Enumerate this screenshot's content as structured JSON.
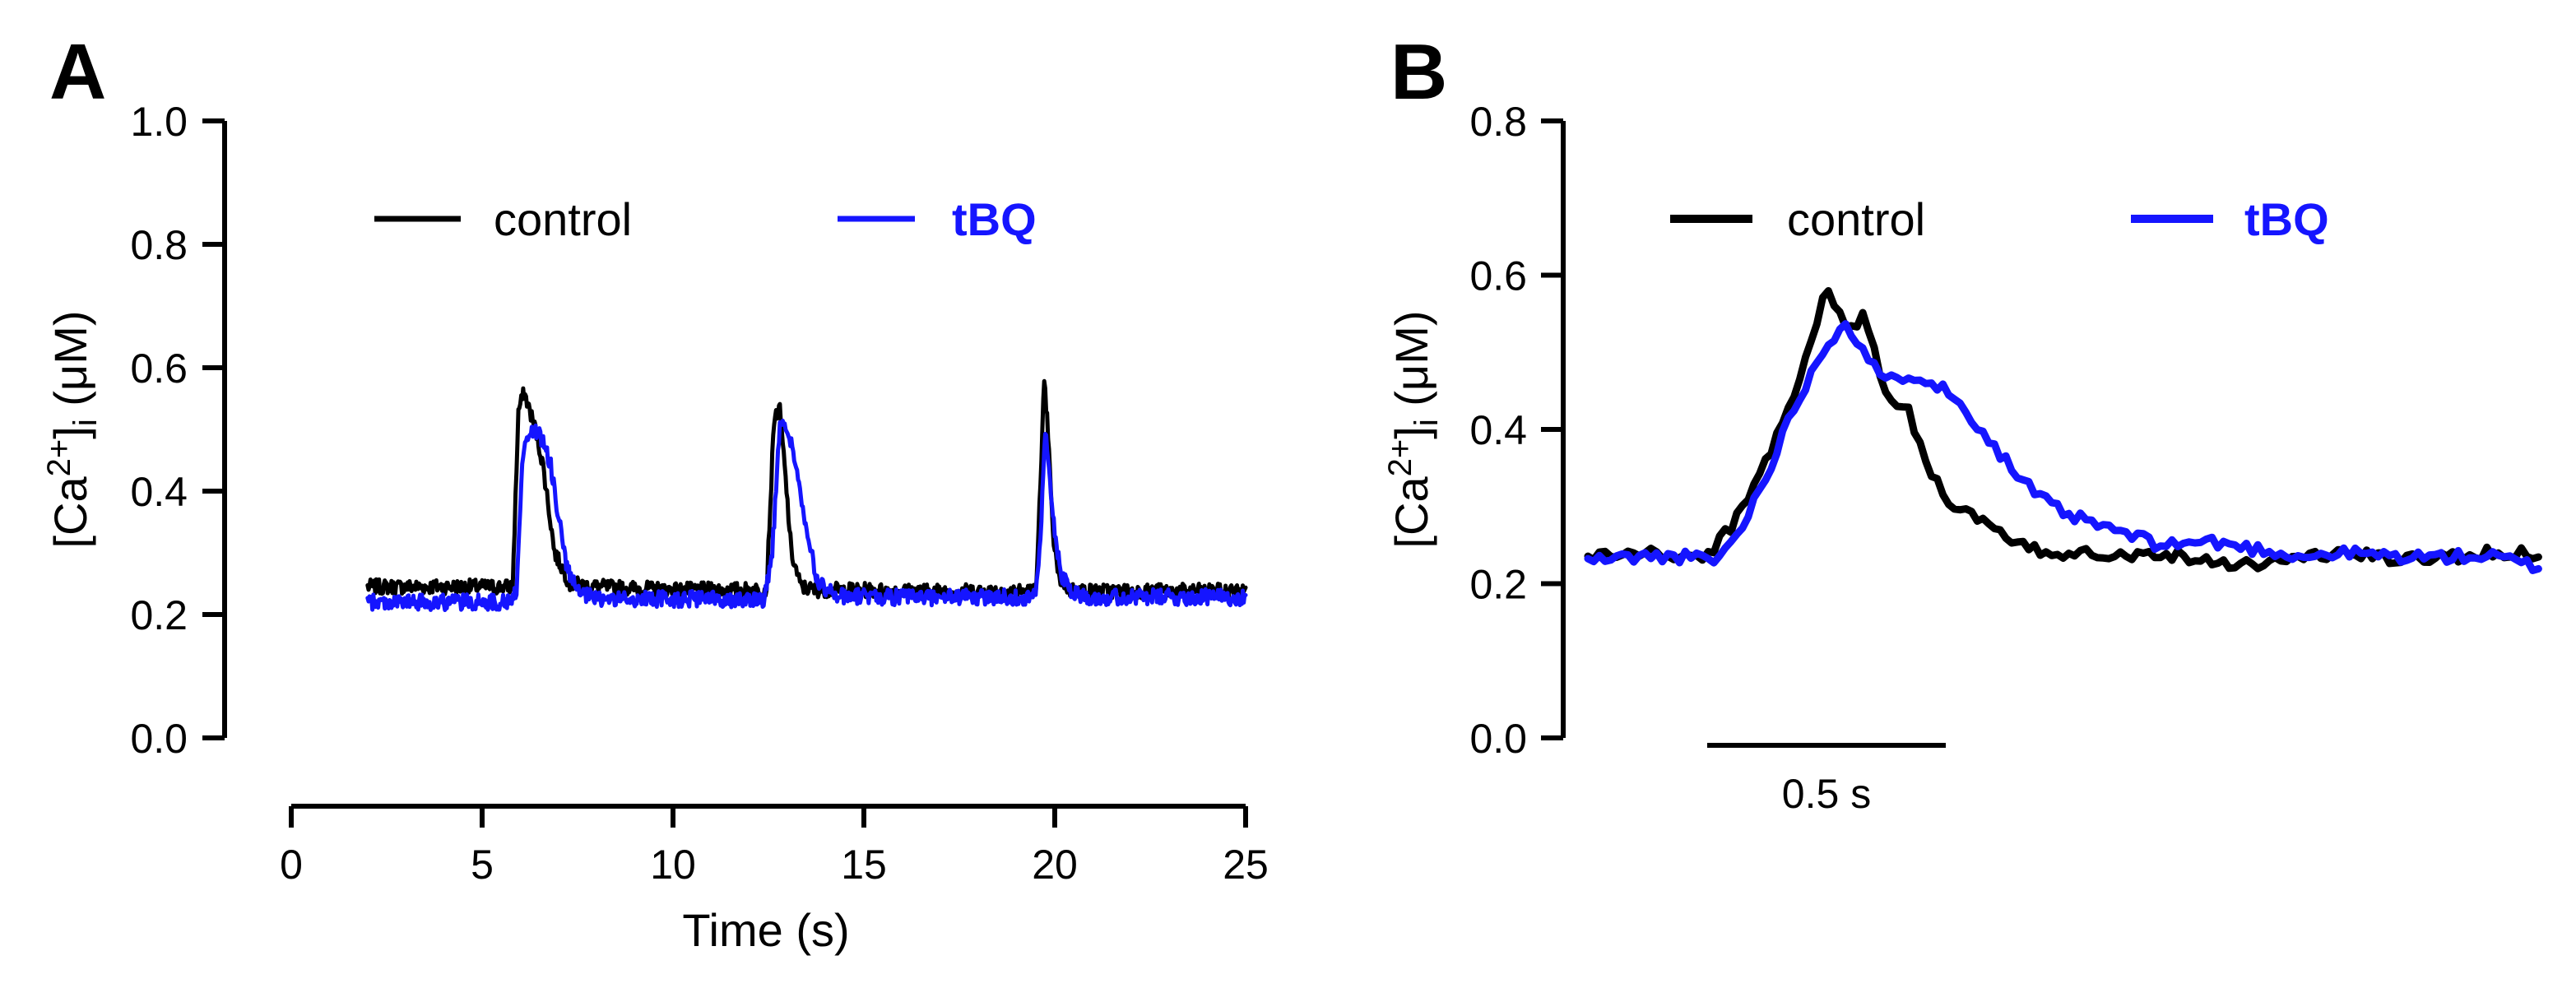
{
  "chart_data": [
    {
      "panel": "A",
      "type": "line",
      "title": "",
      "xlabel": "Time (s)",
      "ylabel_parts": {
        "base": "[Ca",
        "sup": "2+",
        "close": "]",
        "sub": "i",
        "units": " (μM)"
      },
      "xlim": [
        0,
        25
      ],
      "ylim": [
        0.0,
        1.0
      ],
      "xticks": [
        0,
        5,
        10,
        15,
        20,
        25
      ],
      "xtick_labels": [
        "0",
        "5",
        "10",
        "15",
        "20",
        "25"
      ],
      "yticks": [
        0.0,
        0.2,
        0.4,
        0.6,
        0.8,
        1.0
      ],
      "ytick_labels": [
        "0.0",
        "0.2",
        "0.4",
        "0.6",
        "0.8",
        "1.0"
      ],
      "legend": {
        "placement": "top",
        "entries": [
          "control",
          "tBQ"
        ]
      },
      "series": [
        {
          "name": "control",
          "color": "#000000",
          "bold_label": false,
          "x": [
            2.0,
            5.5,
            5.8,
            5.95,
            6.1,
            6.25,
            6.4,
            6.6,
            6.9,
            7.3,
            8.0,
            10.0,
            12.0,
            12.45,
            12.65,
            12.8,
            12.95,
            13.1,
            13.35,
            13.7,
            14.5,
            16.0,
            18.0,
            19.5,
            19.65,
            19.72,
            19.82,
            19.95,
            20.1,
            20.4,
            20.9,
            22.0,
            25.0
          ],
          "y": [
            0.245,
            0.245,
            0.245,
            0.53,
            0.56,
            0.53,
            0.5,
            0.44,
            0.3,
            0.25,
            0.245,
            0.24,
            0.24,
            0.24,
            0.52,
            0.53,
            0.42,
            0.3,
            0.245,
            0.24,
            0.24,
            0.238,
            0.238,
            0.238,
            0.44,
            0.58,
            0.5,
            0.33,
            0.26,
            0.24,
            0.238,
            0.238,
            0.238
          ]
        },
        {
          "name": "tBQ",
          "color": "#1515ff",
          "bold_label": true,
          "x": [
            2.0,
            5.7,
            5.9,
            6.05,
            6.2,
            6.4,
            6.6,
            6.8,
            7.0,
            7.2,
            7.5,
            8.0,
            10.0,
            12.4,
            12.6,
            12.8,
            13.0,
            13.2,
            13.5,
            13.8,
            14.3,
            16.0,
            19.5,
            19.65,
            19.75,
            19.85,
            20.0,
            20.2,
            20.5,
            21.0,
            22.5,
            25.0
          ],
          "y": [
            0.22,
            0.22,
            0.24,
            0.45,
            0.49,
            0.5,
            0.48,
            0.44,
            0.36,
            0.28,
            0.235,
            0.225,
            0.225,
            0.225,
            0.3,
            0.51,
            0.5,
            0.45,
            0.33,
            0.25,
            0.23,
            0.228,
            0.228,
            0.35,
            0.5,
            0.43,
            0.33,
            0.26,
            0.235,
            0.228,
            0.228,
            0.228
          ]
        }
      ]
    },
    {
      "panel": "B",
      "type": "line",
      "title": "",
      "xlabel": "",
      "ylabel_parts": {
        "base": "[Ca",
        "sup": "2+",
        "close": "]",
        "sub": "i",
        "units": " (μM)"
      },
      "xlim": [
        0.0,
        2.0
      ],
      "ylim": [
        0.0,
        0.8
      ],
      "yticks": [
        0.0,
        0.2,
        0.4,
        0.6,
        0.8
      ],
      "ytick_labels": [
        "0.0",
        "0.2",
        "0.4",
        "0.6",
        "0.8"
      ],
      "scale_bar": {
        "label": "0.5 s",
        "start": 0.25,
        "length": 0.5
      },
      "legend": {
        "placement": "top",
        "entries": [
          "control",
          "tBQ"
        ]
      },
      "series": [
        {
          "name": "control",
          "color": "#000000",
          "bold_label": false,
          "x": [
            0.0,
            0.1,
            0.2,
            0.25,
            0.32,
            0.38,
            0.44,
            0.5,
            0.52,
            0.55,
            0.58,
            0.6,
            0.63,
            0.67,
            0.7,
            0.75,
            0.8,
            0.85,
            0.9,
            0.95,
            1.0,
            1.05,
            1.1,
            1.2,
            1.3,
            1.4,
            1.5,
            1.6,
            1.7,
            1.8,
            1.9,
            2.0
          ],
          "y": [
            0.235,
            0.24,
            0.235,
            0.235,
            0.29,
            0.37,
            0.46,
            0.58,
            0.56,
            0.53,
            0.55,
            0.5,
            0.44,
            0.43,
            0.37,
            0.31,
            0.29,
            0.27,
            0.25,
            0.24,
            0.24,
            0.245,
            0.235,
            0.24,
            0.23,
            0.225,
            0.235,
            0.24,
            0.23,
            0.235,
            0.24,
            0.24
          ]
        },
        {
          "name": "tBQ",
          "color": "#1515ff",
          "bold_label": true,
          "x": [
            0.0,
            0.1,
            0.2,
            0.27,
            0.32,
            0.38,
            0.44,
            0.5,
            0.54,
            0.58,
            0.62,
            0.66,
            0.7,
            0.75,
            0.8,
            0.85,
            0.9,
            0.95,
            1.0,
            1.05,
            1.1,
            1.2,
            1.3,
            1.4,
            1.5,
            1.6,
            1.7,
            1.8,
            1.9,
            2.0
          ],
          "y": [
            0.23,
            0.235,
            0.235,
            0.23,
            0.27,
            0.35,
            0.44,
            0.51,
            0.54,
            0.5,
            0.46,
            0.47,
            0.47,
            0.45,
            0.42,
            0.38,
            0.34,
            0.31,
            0.29,
            0.28,
            0.27,
            0.25,
            0.255,
            0.245,
            0.235,
            0.24,
            0.235,
            0.235,
            0.235,
            0.22
          ]
        }
      ]
    }
  ]
}
